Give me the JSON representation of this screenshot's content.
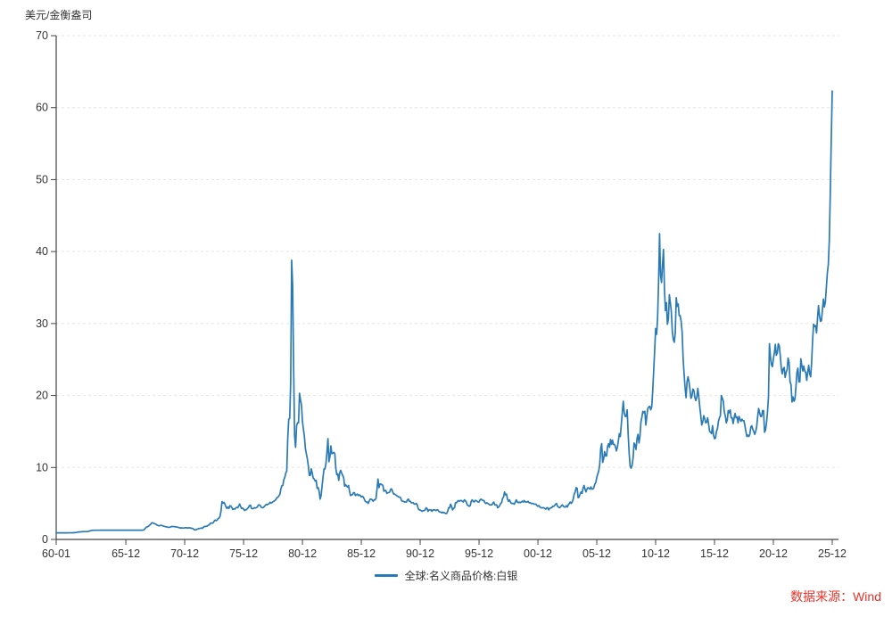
{
  "page": {
    "background": "#ffffff"
  },
  "colors": {
    "line": "#2a7ab5",
    "axis": "#444444",
    "grid": "#e5e5e5",
    "tick_text": "#333333",
    "source_red": "#e8322a"
  },
  "footer": {
    "source": "数据来源：Wind"
  },
  "chart_data": {
    "type": "line",
    "title": "",
    "ylabel": "美元/金衡盎司",
    "xlabel": "",
    "frequency": "monthly",
    "x_start": "1960-01",
    "x_end": "2025-12",
    "ylim": [
      0,
      70
    ],
    "y_ticks": [
      0,
      10,
      20,
      30,
      40,
      50,
      60,
      70
    ],
    "x_tick_labels": [
      "60-01",
      "65-12",
      "70-12",
      "75-12",
      "80-12",
      "85-12",
      "90-12",
      "95-12",
      "00-12",
      "05-12",
      "10-12",
      "15-12",
      "20-12",
      "25-12"
    ],
    "x_tick_month_index": [
      0,
      71,
      131,
      191,
      251,
      311,
      371,
      431,
      491,
      551,
      611,
      671,
      731,
      791
    ],
    "grid": "horizontal-dashed",
    "legend_position": "bottom-center",
    "series": [
      {
        "name": "全球:名义商品价格:白银",
        "color": "#2a7ab5",
        "start_year": 1960,
        "values_by_year": [
          [
            0.91,
            0.91,
            0.91,
            0.91,
            0.91,
            0.91,
            0.91,
            0.91,
            0.91,
            0.91,
            0.91,
            0.91
          ],
          [
            0.92,
            0.92,
            0.92,
            0.92,
            0.92,
            0.93,
            0.93,
            0.94,
            0.96,
            0.98,
            1.01,
            1.04
          ],
          [
            1.04,
            1.05,
            1.07,
            1.08,
            1.08,
            1.09,
            1.09,
            1.09,
            1.1,
            1.12,
            1.17,
            1.22
          ],
          [
            1.25,
            1.26,
            1.27,
            1.28,
            1.28,
            1.28,
            1.28,
            1.28,
            1.28,
            1.29,
            1.29,
            1.29
          ],
          [
            1.29,
            1.29,
            1.29,
            1.29,
            1.29,
            1.29,
            1.29,
            1.29,
            1.29,
            1.29,
            1.29,
            1.29
          ],
          [
            1.29,
            1.29,
            1.29,
            1.29,
            1.29,
            1.29,
            1.29,
            1.29,
            1.29,
            1.29,
            1.29,
            1.29
          ],
          [
            1.29,
            1.29,
            1.29,
            1.29,
            1.29,
            1.29,
            1.29,
            1.29,
            1.29,
            1.29,
            1.29,
            1.29
          ],
          [
            1.29,
            1.29,
            1.29,
            1.29,
            1.29,
            1.31,
            1.4,
            1.58,
            1.7,
            1.76,
            1.83,
            1.96
          ],
          [
            2.06,
            2.25,
            2.31,
            2.26,
            2.22,
            2.15,
            2.08,
            1.98,
            1.92,
            1.9,
            1.93,
            1.97
          ],
          [
            1.92,
            1.86,
            1.82,
            1.79,
            1.76,
            1.72,
            1.69,
            1.68,
            1.71,
            1.76,
            1.81,
            1.79
          ],
          [
            1.79,
            1.76,
            1.75,
            1.72,
            1.7,
            1.65,
            1.61,
            1.58,
            1.61,
            1.58,
            1.57,
            1.63
          ],
          [
            1.63,
            1.61,
            1.58,
            1.61,
            1.62,
            1.58,
            1.55,
            1.52,
            1.44,
            1.34,
            1.31,
            1.38
          ],
          [
            1.43,
            1.49,
            1.53,
            1.56,
            1.58,
            1.55,
            1.69,
            1.78,
            1.81,
            1.83,
            1.86,
            1.98
          ],
          [
            2.02,
            2.24,
            2.28,
            2.25,
            2.31,
            2.54,
            2.69,
            2.61,
            2.68,
            2.89,
            2.96,
            3.22
          ],
          [
            3.95,
            5.25,
            5.05,
            5.15,
            4.9,
            4.55,
            4.32,
            4.51,
            4.3,
            4.68,
            4.64,
            4.45
          ],
          [
            4.15,
            4.26,
            4.21,
            4.36,
            4.46,
            4.4,
            4.64,
            4.92,
            4.56,
            4.31,
            4.36,
            4.21
          ],
          [
            4.02,
            4.12,
            4.16,
            4.31,
            4.46,
            4.71,
            4.76,
            4.32,
            4.26,
            4.31,
            4.41,
            4.36
          ],
          [
            4.41,
            4.51,
            4.76,
            4.81,
            4.71,
            4.46,
            4.41,
            4.42,
            4.56,
            4.71,
            4.86,
            4.81
          ],
          [
            4.91,
            4.96,
            5.16,
            5.06,
            5.11,
            5.26,
            5.31,
            5.41,
            5.56,
            5.81,
            5.86,
            6.06
          ],
          [
            6.26,
            7.01,
            7.46,
            7.51,
            8.31,
            8.61,
            9.21,
            9.51,
            14.0,
            16.7,
            16.8,
            21.8
          ],
          [
            38.8,
            35.3,
            24.0,
            14.4,
            12.8,
            15.8,
            16.2,
            16.2,
            20.3,
            19.4,
            18.7,
            16.4
          ],
          [
            15.3,
            14.3,
            12.6,
            11.9,
            11.2,
            10.2,
            8.9,
            8.9,
            9.8,
            9.2,
            8.5,
            8.4
          ],
          [
            8.1,
            8.2,
            7.1,
            7.2,
            6.7,
            5.6,
            6.1,
            7.4,
            8.7,
            9.8,
            9.8,
            10.6
          ],
          [
            12.2,
            14.0,
            10.8,
            11.5,
            13.0,
            11.9,
            12.0,
            12.1,
            11.9,
            9.9,
            9.0,
            9.1
          ],
          [
            8.2,
            9.3,
            9.6,
            9.2,
            8.9,
            8.6,
            7.4,
            7.6,
            7.4,
            7.3,
            7.5,
            6.7
          ],
          [
            6.1,
            6.2,
            6.2,
            6.5,
            6.5,
            6.1,
            6.2,
            6.3,
            6.1,
            6.2,
            6.1,
            5.9
          ],
          [
            6.0,
            5.9,
            5.6,
            5.3,
            5.2,
            5.2,
            5.0,
            5.3,
            5.6,
            5.6,
            5.5,
            5.3
          ],
          [
            5.5,
            5.5,
            5.7,
            7.0,
            8.4,
            7.2,
            7.7,
            7.7,
            7.6,
            7.5,
            6.7,
            6.8
          ],
          [
            6.8,
            6.4,
            6.5,
            6.5,
            6.6,
            7.0,
            7.0,
            6.6,
            6.3,
            6.3,
            6.2,
            6.1
          ],
          [
            6.0,
            5.9,
            5.9,
            5.8,
            5.4,
            5.3,
            5.3,
            5.2,
            5.2,
            5.2,
            5.5,
            5.6
          ],
          [
            5.3,
            5.3,
            5.1,
            5.1,
            5.1,
            4.9,
            4.9,
            5.0,
            4.8,
            4.3,
            4.1,
            4.1
          ],
          [
            4.0,
            3.9,
            4.0,
            4.0,
            4.1,
            4.4,
            4.3,
            3.9,
            4.1,
            4.1,
            4.1,
            3.9
          ],
          [
            4.1,
            4.1,
            4.1,
            4.0,
            4.1,
            4.1,
            3.9,
            3.8,
            3.8,
            3.7,
            3.8,
            3.7
          ],
          [
            3.7,
            3.6,
            3.6,
            3.9,
            4.4,
            4.4,
            4.9,
            4.6,
            4.1,
            4.3,
            4.4,
            5.1
          ],
          [
            5.1,
            5.3,
            5.4,
            5.3,
            5.4,
            5.4,
            5.3,
            5.2,
            5.5,
            5.4,
            5.2,
            4.8
          ],
          [
            4.7,
            4.6,
            4.7,
            5.3,
            5.5,
            5.3,
            5.2,
            5.4,
            5.4,
            5.3,
            5.2,
            5.2
          ],
          [
            5.5,
            5.6,
            5.5,
            5.4,
            5.4,
            5.1,
            5.0,
            5.1,
            5.0,
            4.9,
            4.8,
            4.8
          ],
          [
            4.8,
            5.0,
            5.2,
            4.8,
            4.8,
            4.8,
            4.4,
            4.5,
            4.7,
            5.0,
            5.1,
            5.7
          ],
          [
            5.9,
            6.6,
            6.2,
            6.3,
            5.6,
            5.3,
            5.5,
            5.2,
            5.0,
            5.0,
            5.0,
            4.9
          ],
          [
            5.2,
            5.5,
            5.2,
            5.1,
            5.2,
            5.1,
            5.2,
            5.3,
            5.2,
            5.4,
            5.2,
            5.2
          ],
          [
            5.2,
            5.3,
            5.1,
            5.1,
            5.0,
            5.0,
            5.0,
            4.9,
            4.9,
            4.9,
            4.7,
            4.6
          ],
          [
            4.7,
            4.5,
            4.4,
            4.4,
            4.4,
            4.4,
            4.3,
            4.2,
            4.4,
            4.4,
            4.1,
            4.3
          ],
          [
            4.4,
            4.4,
            4.6,
            4.6,
            4.7,
            4.9,
            5.0,
            4.6,
            4.5,
            4.4,
            4.5,
            4.7
          ],
          [
            4.8,
            4.6,
            4.5,
            4.5,
            4.7,
            4.5,
            4.8,
            5.0,
            5.2,
            5.0,
            5.2,
            5.6
          ],
          [
            6.3,
            6.6,
            7.2,
            7.1,
            5.8,
            5.9,
            6.3,
            6.6,
            6.4,
            7.1,
            7.5,
            7.0
          ],
          [
            6.6,
            7.0,
            7.2,
            7.1,
            7.0,
            7.3,
            7.0,
            7.0,
            7.2,
            7.7,
            7.9,
            8.6
          ],
          [
            9.1,
            9.5,
            10.4,
            12.6,
            13.3,
            10.7,
            11.2,
            12.2,
            11.6,
            11.6,
            12.9,
            13.3
          ],
          [
            12.8,
            13.9,
            13.2,
            13.8,
            13.2,
            13.2,
            12.9,
            12.3,
            12.8,
            13.7,
            14.7,
            14.3
          ],
          [
            16.0,
            17.6,
            19.2,
            17.6,
            17.1,
            17.1,
            18.0,
            14.6,
            12.0,
            10.2,
            9.9,
            10.3
          ],
          [
            11.3,
            13.4,
            13.1,
            12.5,
            14.0,
            14.6,
            13.4,
            14.3,
            16.3,
            17.0,
            17.8,
            17.6
          ],
          [
            17.8,
            15.9,
            17.1,
            18.2,
            18.4,
            18.5,
            18.0,
            18.4,
            20.6,
            23.4,
            26.2,
            29.3
          ],
          [
            28.5,
            30.8,
            35.8,
            42.5,
            36.7,
            35.7,
            38.2,
            40.3,
            34.7,
            31.8,
            32.9,
            29.9
          ],
          [
            30.6,
            34.0,
            32.9,
            31.6,
            28.9,
            27.8,
            27.4,
            28.7,
            33.6,
            32.4,
            32.7,
            31.1
          ],
          [
            31.1,
            30.3,
            28.8,
            25.2,
            23.0,
            21.1,
            19.7,
            21.9,
            22.6,
            21.9,
            20.8,
            19.6
          ],
          [
            19.9,
            20.9,
            20.7,
            19.7,
            19.3,
            19.8,
            21.0,
            19.8,
            18.4,
            17.2,
            15.9,
            16.3
          ],
          [
            17.2,
            16.8,
            16.2,
            16.3,
            16.9,
            16.0,
            15.0,
            14.9,
            14.7,
            15.8,
            14.5,
            14.0
          ],
          [
            14.1,
            15.0,
            15.4,
            16.4,
            16.9,
            17.2,
            20.0,
            19.6,
            19.2,
            17.7,
            17.2,
            16.2
          ],
          [
            16.6,
            17.9,
            17.6,
            18.0,
            16.9,
            16.9,
            16.1,
            16.9,
            17.5,
            16.9,
            17.0,
            16.2
          ],
          [
            17.1,
            16.7,
            16.4,
            16.7,
            16.5,
            16.5,
            15.8,
            15.0,
            14.3,
            14.5,
            14.3,
            14.6
          ],
          [
            15.6,
            15.8,
            15.3,
            15.0,
            14.6,
            15.0,
            15.7,
            17.1,
            18.2,
            17.6,
            17.1,
            17.1
          ],
          [
            17.9,
            17.9,
            14.9,
            15.2,
            16.2,
            17.7,
            19.8,
            27.2,
            25.4,
            24.3,
            24.0,
            25.1
          ],
          [
            25.9,
            27.1,
            25.6,
            25.9,
            27.2,
            26.9,
            25.6,
            23.9,
            23.0,
            23.7,
            23.9,
            22.5
          ],
          [
            23.2,
            23.6,
            25.2,
            24.6,
            21.9,
            21.5,
            19.1,
            19.8,
            19.2,
            19.5,
            21.2,
            23.2
          ],
          [
            23.8,
            21.9,
            21.9,
            25.1,
            24.2,
            23.4,
            24.1,
            23.4,
            23.2,
            22.1,
            23.3,
            24.2
          ],
          [
            23.0,
            22.6,
            24.6,
            27.7,
            29.9,
            29.6,
            29.7,
            28.7,
            30.7,
            32.5,
            31.1,
            30.3
          ],
          [
            30.4,
            31.9,
            33.4,
            32.3,
            33.0,
            35.0,
            37.0,
            38.2,
            41.5,
            48.0,
            55.5,
            62.3
          ]
        ]
      }
    ]
  }
}
